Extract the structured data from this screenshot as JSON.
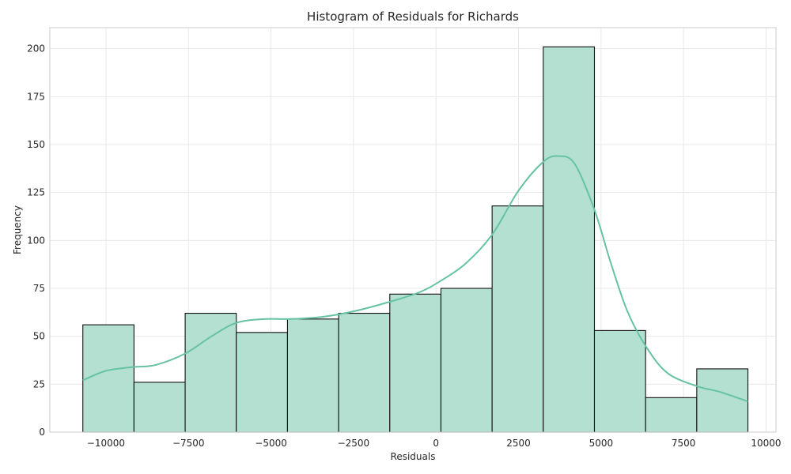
{
  "chart_data": {
    "type": "bar",
    "title": "Histogram of Residuals for Richards",
    "xlabel": "Residuals",
    "ylabel": "Frequency",
    "xlim": [
      -11700,
      10300
    ],
    "ylim": [
      0,
      211
    ],
    "xticks": [
      -10000,
      -7500,
      -5000,
      -2500,
      0,
      2500,
      5000,
      7500,
      10000
    ],
    "yticks": [
      0,
      25,
      50,
      75,
      100,
      125,
      150,
      175,
      200
    ],
    "xtick_labels": [
      "−10000",
      "−7500",
      "−5000",
      "−2500",
      "0",
      "2500",
      "5000",
      "7500",
      "10000"
    ],
    "ytick_labels": [
      "0",
      "25",
      "50",
      "75",
      "100",
      "125",
      "150",
      "175",
      "200"
    ],
    "grid": true,
    "bins": [
      {
        "start": -10700,
        "end": -9150,
        "count": 56
      },
      {
        "start": -9150,
        "end": -7600,
        "count": 26
      },
      {
        "start": -7600,
        "end": -6050,
        "count": 62
      },
      {
        "start": -6050,
        "end": -4500,
        "count": 52
      },
      {
        "start": -4500,
        "end": -2950,
        "count": 59
      },
      {
        "start": -2950,
        "end": -1400,
        "count": 62
      },
      {
        "start": -1400,
        "end": 150,
        "count": 72
      },
      {
        "start": 150,
        "end": 1700,
        "count": 75
      },
      {
        "start": 1700,
        "end": 3250,
        "count": 118
      },
      {
        "start": 3250,
        "end": 4800,
        "count": 201
      },
      {
        "start": 4800,
        "end": 6350,
        "count": 53
      },
      {
        "start": 6350,
        "end": 7900,
        "count": 18
      },
      {
        "start": 7900,
        "end": 9450,
        "count": 33
      }
    ],
    "kde": {
      "x": [
        -10700,
        -10000,
        -9150,
        -8500,
        -7600,
        -6800,
        -6050,
        -5200,
        -4500,
        -3500,
        -2500,
        -1400,
        -500,
        150,
        900,
        1700,
        2500,
        3250,
        3700,
        4200,
        4800,
        5300,
        5800,
        6350,
        7000,
        7900,
        8600,
        9450
      ],
      "y": [
        27,
        32,
        34,
        35,
        41,
        50,
        57,
        59,
        59,
        60,
        63,
        68,
        73,
        79,
        88,
        103,
        126,
        141,
        144,
        140,
        116,
        88,
        63,
        45,
        31,
        24,
        21,
        16
      ]
    },
    "colors": {
      "bar_fill": "#b3e0d1",
      "bar_edge": "#111111",
      "kde_line": "#66c2a5",
      "frame": "#cccccc"
    }
  }
}
